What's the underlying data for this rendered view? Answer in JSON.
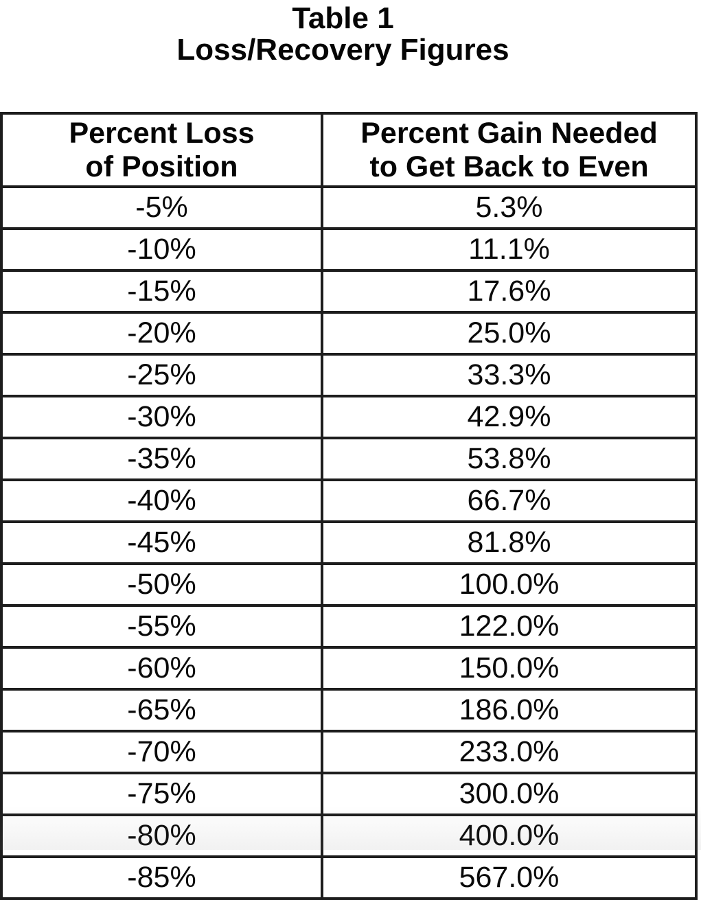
{
  "title": {
    "line1": "Table 1",
    "line2": "Loss/Recovery Figures"
  },
  "table": {
    "headers": [
      {
        "line1": "Percent Loss",
        "line2": "of Position"
      },
      {
        "line1": "Percent Gain Needed",
        "line2": "to Get Back to Even"
      }
    ],
    "rows": [
      {
        "loss": "-5%",
        "gain": "5.3%"
      },
      {
        "loss": "-10%",
        "gain": "11.1%"
      },
      {
        "loss": "-15%",
        "gain": "17.6%"
      },
      {
        "loss": "-20%",
        "gain": "25.0%"
      },
      {
        "loss": "-25%",
        "gain": "33.3%"
      },
      {
        "loss": "-30%",
        "gain": "42.9%"
      },
      {
        "loss": "-35%",
        "gain": "53.8%"
      },
      {
        "loss": "-40%",
        "gain": "66.7%"
      },
      {
        "loss": "-45%",
        "gain": "81.8%"
      },
      {
        "loss": "-50%",
        "gain": "100.0%"
      },
      {
        "loss": "-55%",
        "gain": "122.0%"
      },
      {
        "loss": "-60%",
        "gain": "150.0%"
      },
      {
        "loss": "-65%",
        "gain": "186.0%"
      },
      {
        "loss": "-70%",
        "gain": "233.0%"
      },
      {
        "loss": "-75%",
        "gain": "300.0%"
      },
      {
        "loss": "-80%",
        "gain": "400.0%"
      },
      {
        "loss": "-85%",
        "gain": "567.0%"
      }
    ]
  },
  "colors": {
    "text": "#050505",
    "border": "#1d1d1d",
    "background": "#ffffff"
  }
}
